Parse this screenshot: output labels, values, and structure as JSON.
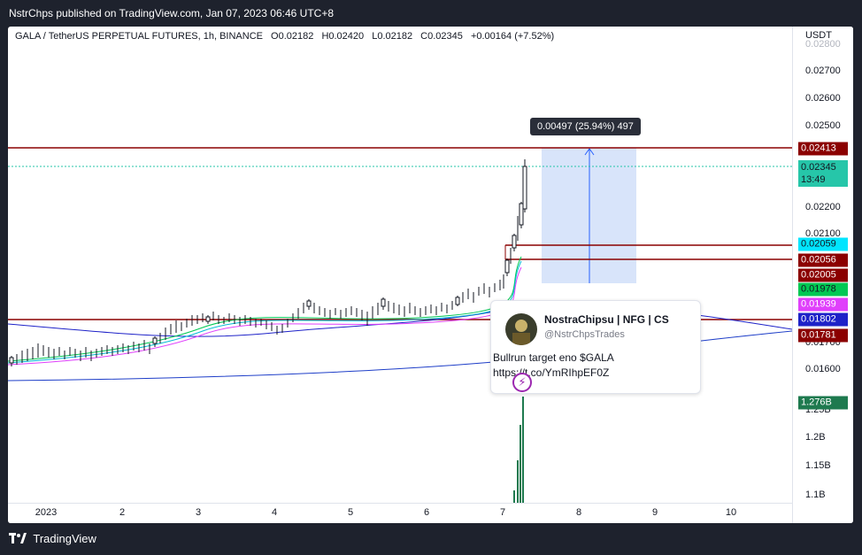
{
  "header": {
    "publisher_line": "NstrChps published on TradingView.com, Jan 07, 2023 06:46 UTC+8"
  },
  "legend": {
    "symbol": "GALA / TetherUS PERPETUAL FUTURES, 1h, BINANCE",
    "open": "O0.02182",
    "high": "H0.02420",
    "low": "L0.02182",
    "close": "C0.02345",
    "change": "+0.00164 (+7.52%)"
  },
  "axis": {
    "currency": "USDT",
    "price_ticks": [
      "0.02800",
      "0.02700",
      "0.02600",
      "0.02500",
      "0.02200",
      "0.02100",
      "0.01700",
      "0.01600"
    ],
    "volume_ticks": [
      "1.25B",
      "1.2B",
      "1.15B",
      "1.1B"
    ],
    "x_ticks": [
      "2023",
      "2",
      "3",
      "4",
      "5",
      "6",
      "7",
      "8",
      "9",
      "10"
    ]
  },
  "price_labels": [
    {
      "text": "0.02413",
      "color": "#8b0000"
    },
    {
      "text": "0.02345",
      "sub": "13:49",
      "color": "#26c6a9"
    },
    {
      "text": "0.02059",
      "color": "#00e5ff"
    },
    {
      "text": "0.02056",
      "color": "#8b0000"
    },
    {
      "text": "0.02005",
      "color": "#8b0000"
    },
    {
      "text": "0.01978",
      "color": "#00c853"
    },
    {
      "text": "0.01939",
      "color": "#e040fb"
    },
    {
      "text": "0.01802",
      "color": "#1e22c8"
    },
    {
      "text": "0.01781",
      "color": "#8b0000"
    },
    {
      "text": "1.276B",
      "color": "#1e7a4f"
    }
  ],
  "measure": {
    "tooltip": "0.00497 (25.94%) 497"
  },
  "tweet": {
    "name": "NostraChipsu | NFG | CS",
    "handle": "@NstrChpsTrades",
    "text": "Bullrun target eno $GALA https://t.co/YmRIhpEF0Z"
  },
  "footer": {
    "brand": "TradingView"
  }
}
